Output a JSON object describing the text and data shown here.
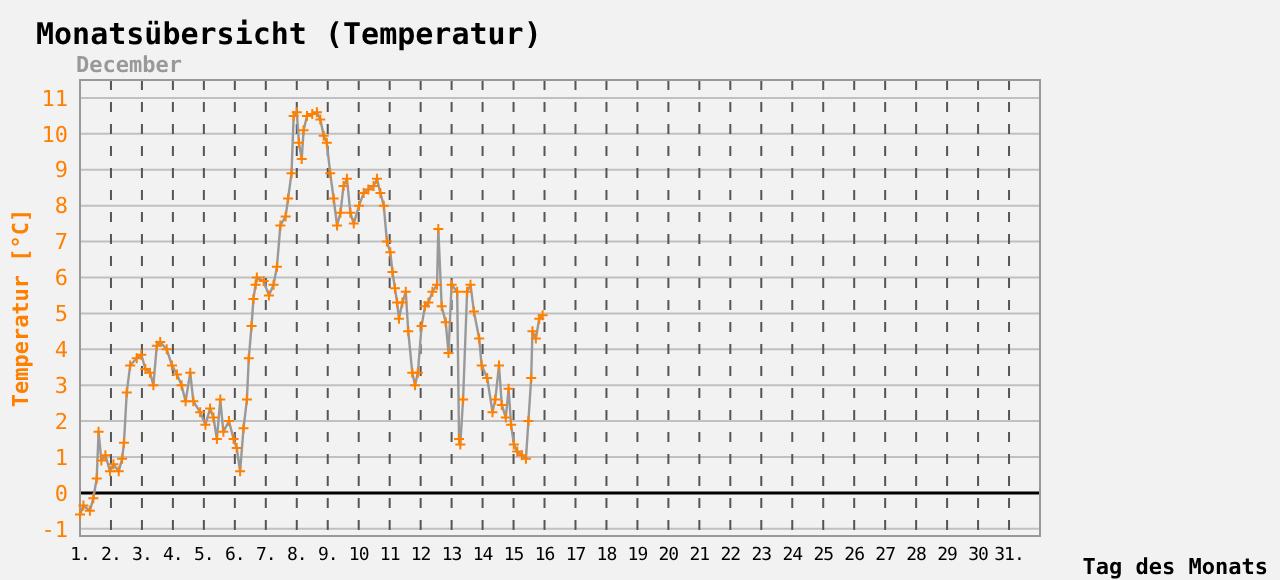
{
  "chart_data": {
    "type": "line",
    "title": "Monatsübersicht (Temperatur)",
    "subtitle": "December",
    "xlabel": "Tag des Monats",
    "ylabel": "Temperatur [°C]",
    "xlim": [
      1,
      32
    ],
    "xticks": [
      {
        "value": 1,
        "label": "1."
      },
      {
        "value": 2,
        "label": "2."
      },
      {
        "value": 3,
        "label": "3."
      },
      {
        "value": 4,
        "label": "4."
      },
      {
        "value": 5,
        "label": "5."
      },
      {
        "value": 6,
        "label": "6."
      },
      {
        "value": 7,
        "label": "7."
      },
      {
        "value": 8,
        "label": "8."
      },
      {
        "value": 9,
        "label": "9."
      },
      {
        "value": 10,
        "label": "10"
      },
      {
        "value": 11,
        "label": "11"
      },
      {
        "value": 12,
        "label": "12"
      },
      {
        "value": 13,
        "label": "13"
      },
      {
        "value": 14,
        "label": "14"
      },
      {
        "value": 15,
        "label": "15"
      },
      {
        "value": 16,
        "label": "16"
      },
      {
        "value": 17,
        "label": "17"
      },
      {
        "value": 18,
        "label": "18"
      },
      {
        "value": 19,
        "label": "19"
      },
      {
        "value": 20,
        "label": "20"
      },
      {
        "value": 21,
        "label": "21"
      },
      {
        "value": 22,
        "label": "22"
      },
      {
        "value": 23,
        "label": "23"
      },
      {
        "value": 24,
        "label": "24"
      },
      {
        "value": 25,
        "label": "25"
      },
      {
        "value": 26,
        "label": "26"
      },
      {
        "value": 27,
        "label": "27"
      },
      {
        "value": 28,
        "label": "28"
      },
      {
        "value": 29,
        "label": "29"
      },
      {
        "value": 30,
        "label": "30"
      },
      {
        "value": 31,
        "label": "31."
      }
    ],
    "ylim": [
      -1.2,
      11.5
    ],
    "yticks": [
      -1,
      0,
      1,
      2,
      3,
      4,
      5,
      6,
      7,
      8,
      9,
      10,
      11
    ],
    "grid": true,
    "ref_lines": [
      {
        "axis": "y",
        "value": 0,
        "color": "#000000"
      }
    ],
    "series": [
      {
        "marker": "none",
        "color": "#999999",
        "x": [
          1.0,
          1.11,
          1.32,
          1.43,
          1.54,
          1.6,
          1.69,
          1.82,
          1.97,
          2.08,
          2.25,
          2.36,
          2.42,
          2.51,
          2.62,
          2.83,
          2.98,
          3.11,
          3.26,
          3.37,
          3.48,
          3.59,
          3.8,
          3.97,
          4.13,
          4.28,
          4.41,
          4.56,
          4.66,
          4.88,
          5.05,
          5.2,
          5.31,
          5.42,
          5.53,
          5.63,
          5.81,
          5.96,
          6.06,
          6.17,
          6.28,
          6.39,
          6.45,
          6.54,
          6.6,
          6.67,
          6.71,
          6.93,
          7.1,
          7.25,
          7.36,
          7.47,
          7.64,
          7.72,
          7.83,
          7.9,
          8.0,
          8.07,
          8.16,
          8.22,
          8.33,
          8.5,
          8.65,
          8.76,
          8.87,
          8.97,
          9.08,
          9.19,
          9.3,
          9.41,
          9.51,
          9.62,
          9.73,
          9.84,
          10.01,
          10.16,
          10.31,
          10.48,
          10.59,
          10.7,
          10.81,
          10.91,
          11.02,
          11.09,
          11.17,
          11.24,
          11.3,
          11.41,
          11.52,
          11.6,
          11.73,
          11.82,
          11.91,
          12.03,
          12.14,
          12.25,
          12.38,
          12.53,
          12.57,
          12.68,
          12.81,
          12.9,
          13.0,
          13.18,
          13.24,
          13.28,
          13.37,
          13.5,
          13.61,
          13.72,
          13.89,
          13.97,
          14.15,
          14.32,
          14.41,
          14.53,
          14.62,
          14.75,
          14.84,
          14.92,
          15.01,
          15.12,
          15.27,
          15.4,
          15.48,
          15.57,
          15.61,
          15.72,
          15.83,
          15.94
        ],
        "values": [
          -0.6,
          -0.35,
          -0.5,
          -0.15,
          0.4,
          1.7,
          0.9,
          1.05,
          0.6,
          0.8,
          0.6,
          0.95,
          1.4,
          2.8,
          3.55,
          3.75,
          3.85,
          3.45,
          3.35,
          3.0,
          4.1,
          4.2,
          4.0,
          3.55,
          3.3,
          3.0,
          2.55,
          3.35,
          2.55,
          2.25,
          1.9,
          2.35,
          2.1,
          1.5,
          2.6,
          1.7,
          2.0,
          1.5,
          1.25,
          0.6,
          1.8,
          2.6,
          3.75,
          4.65,
          5.4,
          5.8,
          6.0,
          5.9,
          5.5,
          5.8,
          6.3,
          7.45,
          7.7,
          8.2,
          8.9,
          10.5,
          10.6,
          9.75,
          9.3,
          10.1,
          10.5,
          10.55,
          10.6,
          10.4,
          9.95,
          9.75,
          8.9,
          8.2,
          7.45,
          7.8,
          8.55,
          8.75,
          7.8,
          7.5,
          8.0,
          8.35,
          8.45,
          8.55,
          8.75,
          8.35,
          8.0,
          7.0,
          6.7,
          6.15,
          5.7,
          5.3,
          4.85,
          5.3,
          5.6,
          4.5,
          3.35,
          3.0,
          3.35,
          4.65,
          5.2,
          5.3,
          5.6,
          5.8,
          7.35,
          5.2,
          4.75,
          3.9,
          5.8,
          5.6,
          1.5,
          1.35,
          2.6,
          5.6,
          5.8,
          5.05,
          4.3,
          3.55,
          3.2,
          2.25,
          2.6,
          3.55,
          2.45,
          2.1,
          2.9,
          1.9,
          1.35,
          1.15,
          1.05,
          0.95,
          2.0,
          3.2,
          4.5,
          4.3,
          4.85,
          4.95
        ]
      },
      {
        "type": "scatter",
        "marker": "cross",
        "color": "#ff8000",
        "x": [
          1.0,
          1.11,
          1.32,
          1.43,
          1.54,
          1.6,
          1.69,
          1.82,
          1.97,
          2.08,
          2.25,
          2.36,
          2.42,
          2.51,
          2.62,
          2.83,
          2.98,
          3.11,
          3.26,
          3.37,
          3.48,
          3.59,
          3.8,
          3.97,
          4.13,
          4.28,
          4.41,
          4.56,
          4.66,
          4.88,
          5.05,
          5.2,
          5.31,
          5.42,
          5.53,
          5.63,
          5.81,
          5.96,
          6.06,
          6.17,
          6.28,
          6.39,
          6.45,
          6.54,
          6.6,
          6.67,
          6.71,
          6.93,
          7.1,
          7.25,
          7.36,
          7.47,
          7.64,
          7.72,
          7.83,
          7.9,
          8.0,
          8.07,
          8.16,
          8.22,
          8.33,
          8.5,
          8.65,
          8.76,
          8.87,
          8.97,
          9.08,
          9.19,
          9.3,
          9.41,
          9.51,
          9.62,
          9.73,
          9.84,
          10.01,
          10.16,
          10.31,
          10.48,
          10.59,
          10.7,
          10.81,
          10.91,
          11.02,
          11.09,
          11.17,
          11.24,
          11.3,
          11.41,
          11.52,
          11.6,
          11.73,
          11.82,
          11.91,
          12.03,
          12.14,
          12.25,
          12.38,
          12.53,
          12.57,
          12.68,
          12.81,
          12.9,
          13.0,
          13.18,
          13.24,
          13.28,
          13.37,
          13.5,
          13.61,
          13.72,
          13.89,
          13.97,
          14.15,
          14.32,
          14.41,
          14.53,
          14.62,
          14.75,
          14.84,
          14.92,
          15.01,
          15.12,
          15.27,
          15.4,
          15.48,
          15.57,
          15.61,
          15.72,
          15.83,
          15.94
        ],
        "values": [
          -0.6,
          -0.35,
          -0.5,
          -0.15,
          0.4,
          1.7,
          0.9,
          1.05,
          0.6,
          0.8,
          0.6,
          0.95,
          1.4,
          2.8,
          3.55,
          3.75,
          3.85,
          3.45,
          3.35,
          3.0,
          4.1,
          4.2,
          4.0,
          3.55,
          3.3,
          3.0,
          2.55,
          3.35,
          2.55,
          2.25,
          1.9,
          2.35,
          2.1,
          1.5,
          2.6,
          1.7,
          2.0,
          1.5,
          1.25,
          0.6,
          1.8,
          2.6,
          3.75,
          4.65,
          5.4,
          5.8,
          6.0,
          5.9,
          5.5,
          5.8,
          6.3,
          7.45,
          7.7,
          8.2,
          8.9,
          10.5,
          10.6,
          9.75,
          9.3,
          10.1,
          10.5,
          10.55,
          10.6,
          10.4,
          9.95,
          9.75,
          8.9,
          8.2,
          7.45,
          7.8,
          8.55,
          8.75,
          7.8,
          7.5,
          8.0,
          8.35,
          8.45,
          8.55,
          8.75,
          8.35,
          8.0,
          7.0,
          6.7,
          6.15,
          5.7,
          5.3,
          4.85,
          5.3,
          5.6,
          4.5,
          3.35,
          3.0,
          3.35,
          4.65,
          5.2,
          5.3,
          5.6,
          5.8,
          7.35,
          5.2,
          4.75,
          3.9,
          5.8,
          5.6,
          1.5,
          1.35,
          2.6,
          5.6,
          5.8,
          5.05,
          4.3,
          3.55,
          3.2,
          2.25,
          2.6,
          3.55,
          2.45,
          2.1,
          2.9,
          1.9,
          1.35,
          1.15,
          1.05,
          0.95,
          2.0,
          3.2,
          4.5,
          4.3,
          4.85,
          4.95
        ]
      }
    ]
  }
}
